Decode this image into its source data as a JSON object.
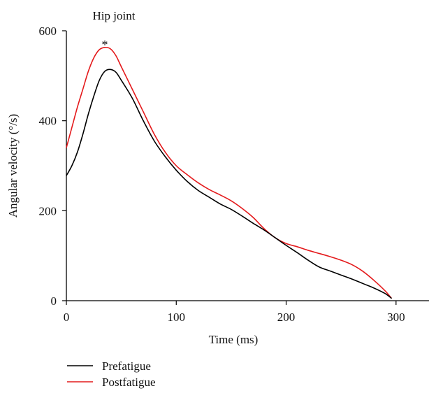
{
  "chart_data": {
    "type": "line",
    "title": "Hip joint",
    "xlabel": "Time (ms)",
    "ylabel": "Angular velocity (°/s)",
    "xlim": [
      0,
      330
    ],
    "ylim": [
      0,
      600
    ],
    "xticks": [
      0,
      100,
      200,
      300
    ],
    "yticks": [
      0,
      200,
      400,
      600
    ],
    "grid": false,
    "legend_position": "bottom-left",
    "annotations": [
      {
        "text": "*",
        "x": 35,
        "y": 575
      }
    ],
    "series": [
      {
        "name": "Prefatigue",
        "color": "#000000",
        "x": [
          0,
          5,
          10,
          15,
          20,
          25,
          30,
          35,
          40,
          45,
          50,
          60,
          70,
          80,
          90,
          100,
          110,
          120,
          130,
          140,
          150,
          160,
          170,
          180,
          190,
          200,
          210,
          220,
          230,
          240,
          250,
          260,
          270,
          280,
          290,
          296
        ],
        "y": [
          278,
          300,
          330,
          370,
          415,
          455,
          490,
          510,
          514,
          508,
          490,
          450,
          400,
          355,
          320,
          290,
          265,
          245,
          230,
          215,
          203,
          188,
          172,
          157,
          140,
          123,
          107,
          90,
          75,
          66,
          57,
          48,
          38,
          28,
          16,
          5
        ]
      },
      {
        "name": "Postfatigue",
        "color": "#e41a1c",
        "x": [
          0,
          5,
          10,
          15,
          20,
          25,
          30,
          35,
          40,
          45,
          50,
          60,
          70,
          80,
          90,
          100,
          110,
          120,
          130,
          140,
          150,
          160,
          170,
          180,
          190,
          200,
          210,
          220,
          230,
          240,
          250,
          260,
          270,
          280,
          290,
          296
        ],
        "y": [
          340,
          385,
          430,
          470,
          510,
          540,
          558,
          563,
          560,
          545,
          520,
          470,
          420,
          370,
          330,
          300,
          280,
          262,
          247,
          235,
          222,
          205,
          185,
          160,
          140,
          127,
          120,
          112,
          105,
          98,
          90,
          80,
          65,
          45,
          22,
          5
        ]
      }
    ]
  }
}
